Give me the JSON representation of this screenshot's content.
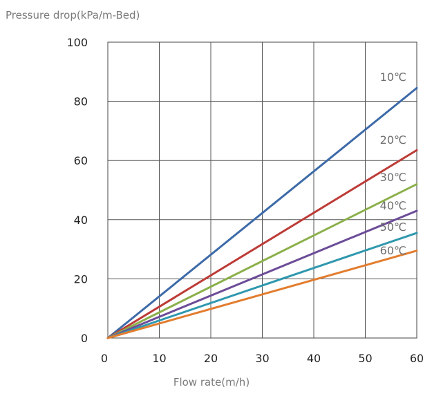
{
  "chart_data": {
    "type": "line",
    "title": "",
    "ylabel": "Pressure drop(kPa/m-Bed)",
    "xlabel": "Flow rate(m/h)",
    "xlim": [
      0,
      60
    ],
    "ylim": [
      0,
      100
    ],
    "x_ticks": [
      "0",
      "10",
      "20",
      "30",
      "40",
      "50",
      "60"
    ],
    "y_ticks": [
      "0",
      "20",
      "40",
      "60",
      "80",
      "100"
    ],
    "grid": true,
    "legend": "inline labels at right end of lines",
    "series": [
      {
        "name": "10℃",
        "color": "#3d6aa8",
        "x": [
          0,
          60
        ],
        "y": [
          0,
          84.5
        ]
      },
      {
        "name": "20℃",
        "color": "#bd3b37",
        "x": [
          0,
          60
        ],
        "y": [
          0,
          63.5
        ]
      },
      {
        "name": "30℃",
        "color": "#8bb04a",
        "x": [
          0,
          60
        ],
        "y": [
          0,
          52
        ]
      },
      {
        "name": "40℃",
        "color": "#6c4c98",
        "x": [
          0,
          60
        ],
        "y": [
          0,
          43
        ]
      },
      {
        "name": "50℃",
        "color": "#2f98ae",
        "x": [
          0,
          60
        ],
        "y": [
          0,
          35.5
        ]
      },
      {
        "name": "60℃",
        "color": "#e27d2f",
        "x": [
          0,
          60
        ],
        "y": [
          0,
          29.5
        ]
      }
    ]
  }
}
